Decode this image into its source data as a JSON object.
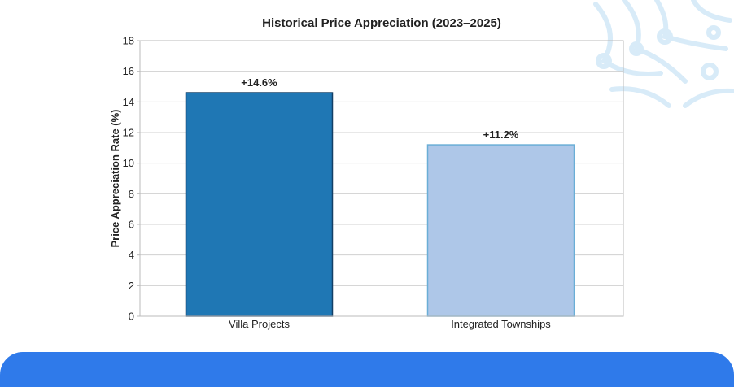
{
  "colors": {
    "bar_primary": "#1f77b4",
    "bar_primary_edge": "#123f66",
    "bar_secondary": "#aec7e8",
    "bar_secondary_edge": "#6aaed6",
    "gridline": "#d0d0d0",
    "axis": "#bbbbbb",
    "text": "#222222",
    "footer": "#2f7aea",
    "decor": "#d8ebf8"
  },
  "decoration": {
    "icon": "circuit-icon"
  },
  "chart_data": {
    "type": "bar",
    "title": "Historical Price Appreciation (2023–2025)",
    "xlabel": "",
    "ylabel": "Price Appreciation Rate (%)",
    "ylim": [
      0,
      18
    ],
    "yticks": [
      0,
      2,
      4,
      6,
      8,
      10,
      12,
      14,
      16,
      18
    ],
    "grid": true,
    "categories": [
      "Villa Projects",
      "Integrated Townships"
    ],
    "values": [
      14.6,
      11.2
    ],
    "data_labels": [
      "+14.6%",
      "+11.2%"
    ]
  }
}
